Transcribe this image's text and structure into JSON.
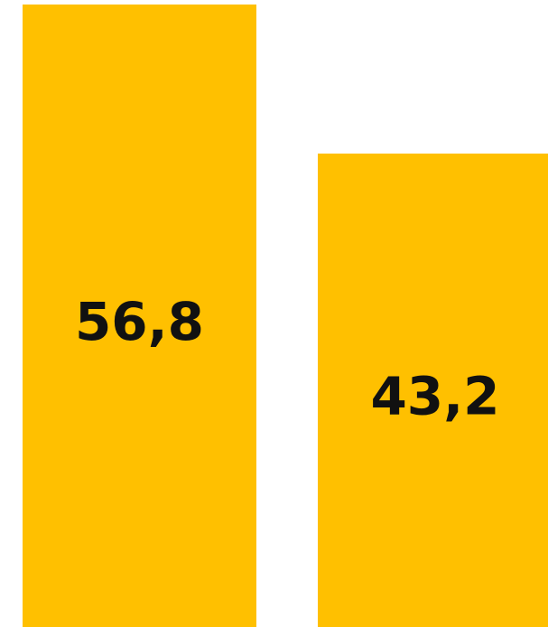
{
  "chart_data": {
    "type": "bar",
    "categories": [
      "",
      ""
    ],
    "values": [
      56.8,
      43.2
    ],
    "value_labels": [
      "56,8",
      "43,2"
    ],
    "bar_color": "#FFC000",
    "label_color": "#111111",
    "grid": false,
    "legend": "none",
    "title": "",
    "xlabel": "",
    "ylabel": ""
  }
}
